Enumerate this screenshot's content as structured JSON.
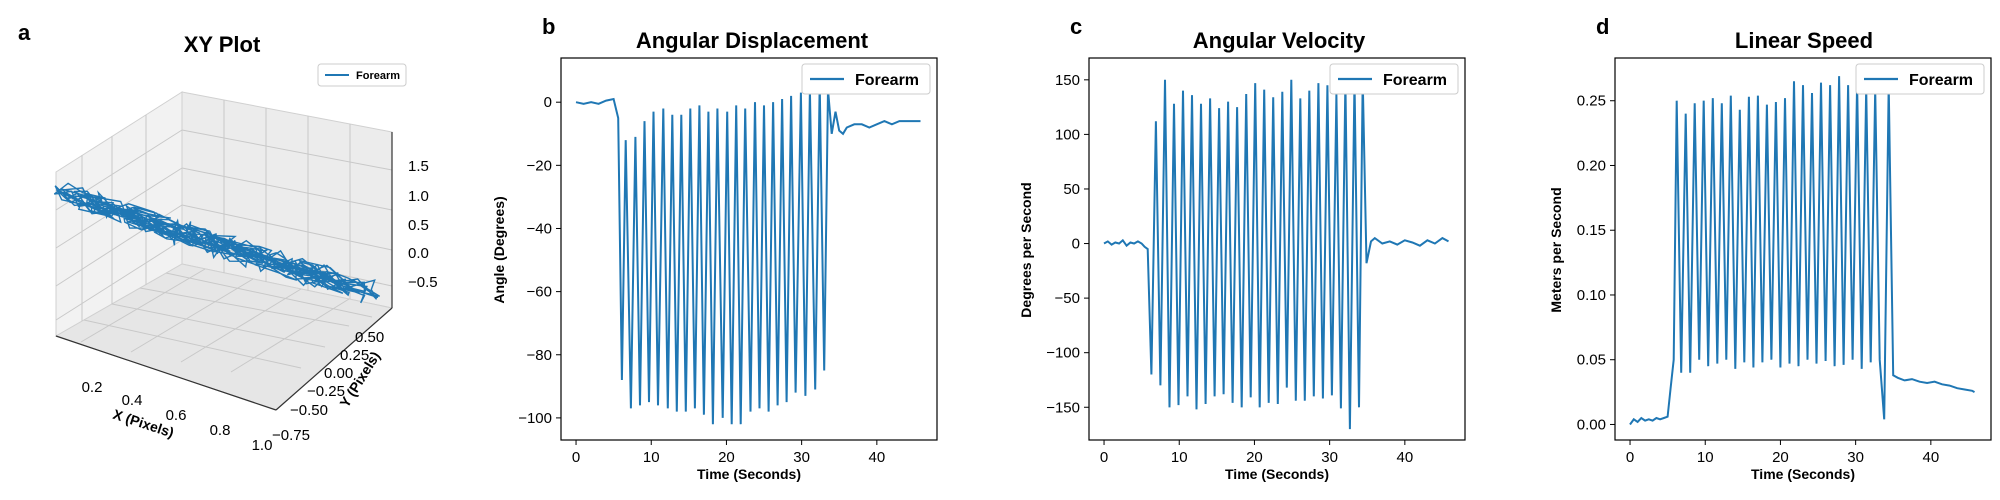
{
  "panels": [
    {
      "letter": "a",
      "title": "XY Plot",
      "xlabel": "X (Pixels)",
      "ylabel": "Y (Pixels)",
      "legend": "Forearm"
    },
    {
      "letter": "b",
      "title": "Angular Displacement",
      "xlabel": "Time (Seconds)",
      "ylabel": "Angle (Degrees)",
      "legend": "Forearm"
    },
    {
      "letter": "c",
      "title": "Angular Velocity",
      "xlabel": "Time (Seconds)",
      "ylabel": "Degrees per Second",
      "legend": "Forearm"
    },
    {
      "letter": "d",
      "title": "Linear Speed",
      "xlabel": "Time (Seconds)",
      "ylabel": "Meters per Second",
      "legend": "Forearm"
    }
  ],
  "chart_data": [
    {
      "type": "line3d",
      "title": "XY Plot",
      "xlabel": "X (Pixels)",
      "ylabel": "Y (Pixels)",
      "series": [
        {
          "name": "Forearm",
          "color": "#1f77b4"
        }
      ],
      "x_ticks": [
        "0.2",
        "0.4",
        "0.6",
        "0.8",
        "1.0"
      ],
      "y_ticks": [
        "0.50",
        "0.25",
        "0.00",
        "−0.25",
        "−0.50",
        "−0.75"
      ],
      "z_ticks": [
        "1.5",
        "1.0",
        "0.5",
        "0.0",
        "−0.5"
      ],
      "xlim": [
        0.1,
        1.0
      ],
      "ylim": [
        -0.75,
        0.5
      ],
      "zlim": [
        -0.75,
        1.6
      ],
      "grid": true,
      "legend_position": "upper-right"
    },
    {
      "type": "line",
      "title": "Angular Displacement",
      "xlabel": "Time (Seconds)",
      "ylabel": "Angle (Degrees)",
      "xlim": [
        -2,
        48
      ],
      "ylim": [
        -107,
        14
      ],
      "x_ticks": [
        0,
        10,
        20,
        30,
        40
      ],
      "y_ticks": [
        0,
        -20,
        -40,
        -60,
        -80,
        -100
      ],
      "grid": false,
      "legend_position": "upper-right",
      "series": [
        {
          "name": "Forearm",
          "color": "#1f77b4",
          "x": [
            0,
            1,
            2,
            3,
            4,
            5,
            5.6,
            6.1,
            6.6,
            7.3,
            7.9,
            8.5,
            9.1,
            9.7,
            10.3,
            10.9,
            11.6,
            12.2,
            12.8,
            13.4,
            14,
            14.6,
            15.2,
            15.8,
            16.4,
            17,
            17.6,
            18.2,
            18.8,
            19.5,
            20.1,
            20.7,
            21.3,
            21.9,
            22.5,
            23.2,
            23.8,
            24.4,
            25.0,
            25.6,
            26.2,
            26.8,
            27.4,
            28.0,
            28.6,
            29.2,
            29.9,
            30.5,
            31.1,
            31.8,
            32.4,
            33.0,
            33.5,
            34.0,
            34.5,
            35.0,
            35.5,
            36,
            37,
            38,
            39,
            40,
            41,
            42,
            43,
            44,
            45,
            45.8
          ],
          "y": [
            0,
            -0.5,
            0,
            -0.5,
            0.5,
            1,
            -5,
            -88,
            -12,
            -97,
            -11,
            -96,
            -6,
            -95,
            -3,
            -96,
            -2,
            -97,
            -4,
            -98,
            -4,
            -98,
            -2,
            -97,
            -1,
            -99,
            -3,
            -102,
            -2,
            -100,
            -3,
            -102,
            -1,
            -102,
            -2,
            -98,
            0,
            -97,
            -1,
            -98,
            0,
            -96,
            1,
            -95,
            2,
            -92,
            3,
            -93,
            4,
            -91,
            6,
            -85,
            4,
            -10,
            -3,
            -9,
            -10,
            -8,
            -7,
            -7,
            -8,
            -7,
            -6,
            -7,
            -6,
            -6,
            -6,
            -6
          ]
        }
      ]
    },
    {
      "type": "line",
      "title": "Angular Velocity",
      "xlabel": "Time (Seconds)",
      "ylabel": "Degrees per Second",
      "xlim": [
        -2,
        48
      ],
      "ylim": [
        -180,
        170
      ],
      "x_ticks": [
        0,
        10,
        20,
        30,
        40
      ],
      "y_ticks": [
        150,
        100,
        50,
        0,
        -50,
        -100,
        -150
      ],
      "grid": false,
      "legend_position": "upper-right",
      "series": [
        {
          "name": "Forearm",
          "color": "#1f77b4",
          "x": [
            0,
            0.5,
            1,
            1.5,
            2,
            2.5,
            3,
            3.5,
            4,
            4.5,
            5,
            5.4,
            5.8,
            6.3,
            6.9,
            7.5,
            8.1,
            8.7,
            9.3,
            9.9,
            10.5,
            11.1,
            11.7,
            12.3,
            12.9,
            13.5,
            14.1,
            14.7,
            15.3,
            15.9,
            16.5,
            17.1,
            17.7,
            18.3,
            18.9,
            19.5,
            20.1,
            20.7,
            21.3,
            21.9,
            22.5,
            23.1,
            23.7,
            24.3,
            24.9,
            25.5,
            26.1,
            26.7,
            27.3,
            27.9,
            28.5,
            29.1,
            29.7,
            30.3,
            30.9,
            31.5,
            32.1,
            32.7,
            33.3,
            33.9,
            34.4,
            34.9,
            35.5,
            36,
            37,
            38,
            39,
            40,
            41,
            42,
            43,
            44,
            45,
            45.8
          ],
          "y": [
            0,
            2,
            -1,
            1,
            0,
            3,
            -2,
            1,
            0,
            2,
            0,
            -3,
            -5,
            -120,
            112,
            -130,
            150,
            -150,
            128,
            -148,
            140,
            -140,
            136,
            -152,
            128,
            -147,
            133,
            -140,
            124,
            -138,
            130,
            -146,
            125,
            -150,
            137,
            -141,
            147,
            -150,
            141,
            -146,
            134,
            -147,
            139,
            -132,
            150,
            -144,
            133,
            -144,
            140,
            -140,
            147,
            -142,
            145,
            -139,
            137,
            -151,
            149,
            -170,
            150,
            -150,
            151,
            -18,
            2,
            5,
            0,
            2,
            -1,
            3,
            1,
            -2,
            3,
            0,
            5,
            2
          ]
        }
      ]
    },
    {
      "type": "line",
      "title": "Linear Speed",
      "xlabel": "Time (Seconds)",
      "ylabel": "Meters per Second",
      "xlim": [
        -2,
        48
      ],
      "ylim": [
        -0.012,
        0.283
      ],
      "x_ticks": [
        0,
        10,
        20,
        30,
        40
      ],
      "y_ticks": [
        0.25,
        0.2,
        0.15,
        0.1,
        0.05,
        0.0
      ],
      "grid": false,
      "legend_position": "upper-right",
      "series": [
        {
          "name": "Forearm",
          "color": "#1f77b4",
          "x": [
            0,
            0.5,
            1,
            1.5,
            2,
            2.5,
            3,
            3.5,
            4,
            4.5,
            5,
            5.4,
            5.8,
            6.2,
            6.8,
            7.4,
            8.0,
            8.6,
            9.2,
            9.8,
            10.4,
            11.0,
            11.6,
            12.2,
            12.8,
            13.4,
            14.0,
            14.6,
            15.2,
            15.8,
            16.4,
            17.0,
            17.6,
            18.2,
            18.8,
            19.4,
            20.0,
            20.6,
            21.2,
            21.8,
            22.4,
            23.0,
            23.6,
            24.2,
            24.8,
            25.4,
            26.0,
            26.6,
            27.2,
            27.8,
            28.4,
            29.0,
            29.6,
            30.2,
            30.8,
            31.4,
            32.0,
            32.6,
            33.2,
            33.8,
            34.4,
            35.0,
            35.6,
            36.5,
            37.5,
            38.5,
            39.5,
            40.5,
            41.5,
            42.5,
            43.5,
            44.5,
            45.5,
            45.8
          ],
          "y": [
            0,
            0.004,
            0.002,
            0.005,
            0.003,
            0.004,
            0.003,
            0.005,
            0.004,
            0.005,
            0.006,
            0.028,
            0.05,
            0.25,
            0.04,
            0.24,
            0.04,
            0.248,
            0.05,
            0.25,
            0.045,
            0.252,
            0.047,
            0.248,
            0.05,
            0.254,
            0.043,
            0.243,
            0.048,
            0.253,
            0.044,
            0.254,
            0.048,
            0.247,
            0.05,
            0.249,
            0.044,
            0.252,
            0.047,
            0.265,
            0.045,
            0.262,
            0.05,
            0.256,
            0.047,
            0.264,
            0.049,
            0.262,
            0.045,
            0.269,
            0.046,
            0.262,
            0.05,
            0.264,
            0.043,
            0.26,
            0.048,
            0.259,
            0.05,
            0.004,
            0.262,
            0.038,
            0.036,
            0.034,
            0.035,
            0.033,
            0.032,
            0.033,
            0.031,
            0.03,
            0.028,
            0.027,
            0.026,
            0.025
          ]
        }
      ]
    }
  ]
}
